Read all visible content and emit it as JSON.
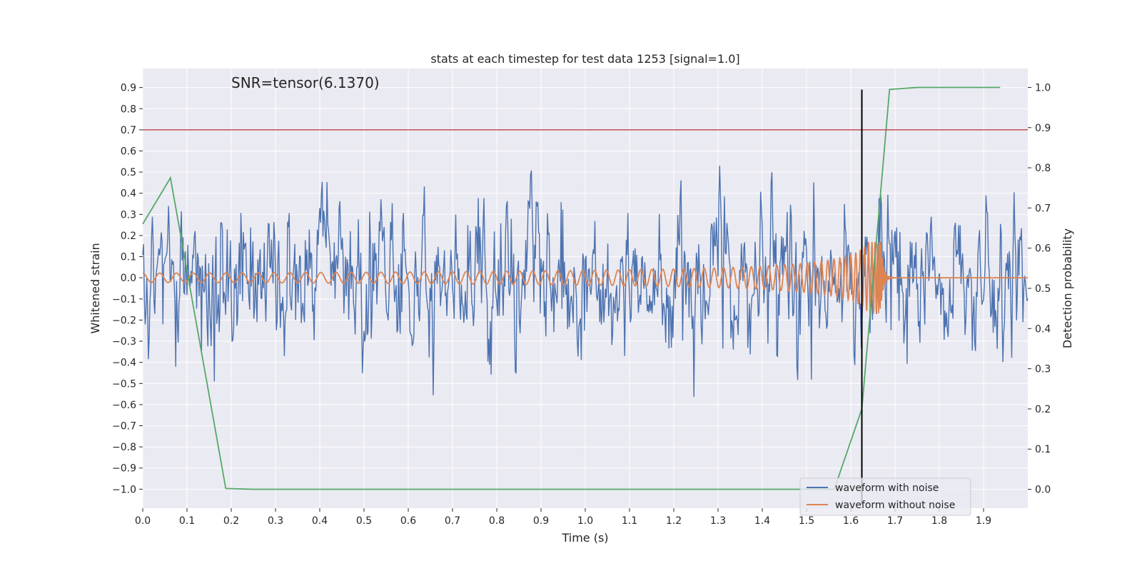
{
  "chart_data": {
    "type": "line",
    "title": "stats at each timestep for test data 1253 [signal=1.0]",
    "xlabel": "Time (s)",
    "ylabel": "Whitened strain",
    "ylabel_right": "Detection probability",
    "annotation": "SNR=tensor(6.1370)",
    "xlim": [
      0.0,
      2.0
    ],
    "ylim": [
      -1.09,
      0.99
    ],
    "ylim_right": [
      -0.047,
      1.047
    ],
    "x_ticks": [
      0.0,
      0.1,
      0.2,
      0.3,
      0.4,
      0.5,
      0.6,
      0.7,
      0.8,
      0.9,
      1.0,
      1.1,
      1.2,
      1.3,
      1.4,
      1.5,
      1.6,
      1.7,
      1.8,
      1.9
    ],
    "x_tick_labels": [
      "0.0",
      "0.1",
      "0.2",
      "0.3",
      "0.4",
      "0.5",
      "0.6",
      "0.7",
      "0.8",
      "0.9",
      "1.0",
      "1.1",
      "1.2",
      "1.3",
      "1.4",
      "1.5",
      "1.6",
      "1.7",
      "1.8",
      "1.9"
    ],
    "y_ticks": [
      0.9,
      0.8,
      0.7,
      0.6,
      0.5,
      0.4,
      0.3,
      0.2,
      0.1,
      0.0,
      -0.1,
      -0.2,
      -0.3,
      -0.4,
      -0.5,
      -0.6,
      -0.7,
      -0.8,
      -0.9,
      -1.0
    ],
    "y_tick_labels": [
      "0.9",
      "0.8",
      "0.7",
      "0.6",
      "0.5",
      "0.4",
      "0.3",
      "0.2",
      "0.1",
      "0.0",
      "−0.1",
      "−0.2",
      "−0.3",
      "−0.4",
      "−0.5",
      "−0.6",
      "−0.7",
      "−0.8",
      "−0.9",
      "−1.0"
    ],
    "y_ticks_right": [
      1.0,
      0.9,
      0.8,
      0.7,
      0.6,
      0.5,
      0.4,
      0.3,
      0.2,
      0.1,
      0.0
    ],
    "y_tick_labels_right": [
      "1.0",
      "0.9",
      "0.8",
      "0.7",
      "0.6",
      "0.5",
      "0.4",
      "0.3",
      "0.2",
      "0.1",
      "0.0"
    ],
    "threshold": {
      "y": 0.7,
      "color": "#c44e52"
    },
    "vline": {
      "x": 1.625,
      "y_range": [
        -1.07,
        0.89
      ],
      "color": "#000000"
    },
    "series": [
      {
        "name": "waveform with noise",
        "color": "#4c72b0",
        "kind": "noise",
        "x_range": [
          0.0,
          2.0
        ],
        "std": 0.2,
        "n_points": 1100
      },
      {
        "name": "waveform without noise",
        "color": "#dd8452",
        "kind": "chirp",
        "x_range": [
          0.0,
          2.0
        ],
        "peak_time": 1.668
      },
      {
        "name": "",
        "color": "#55a868",
        "axis": "right",
        "x": [
          0.0,
          0.0625,
          0.1875,
          0.25,
          1.5625,
          1.625,
          1.6875,
          1.75,
          1.9375
        ],
        "y": [
          0.66,
          0.775,
          0.002,
          0.0,
          0.0,
          0.2,
          0.995,
          1.0,
          1.0
        ]
      }
    ],
    "legend": {
      "position": "lower-right",
      "entries": [
        "waveform with noise",
        "waveform without noise"
      ]
    },
    "grid": true
  }
}
